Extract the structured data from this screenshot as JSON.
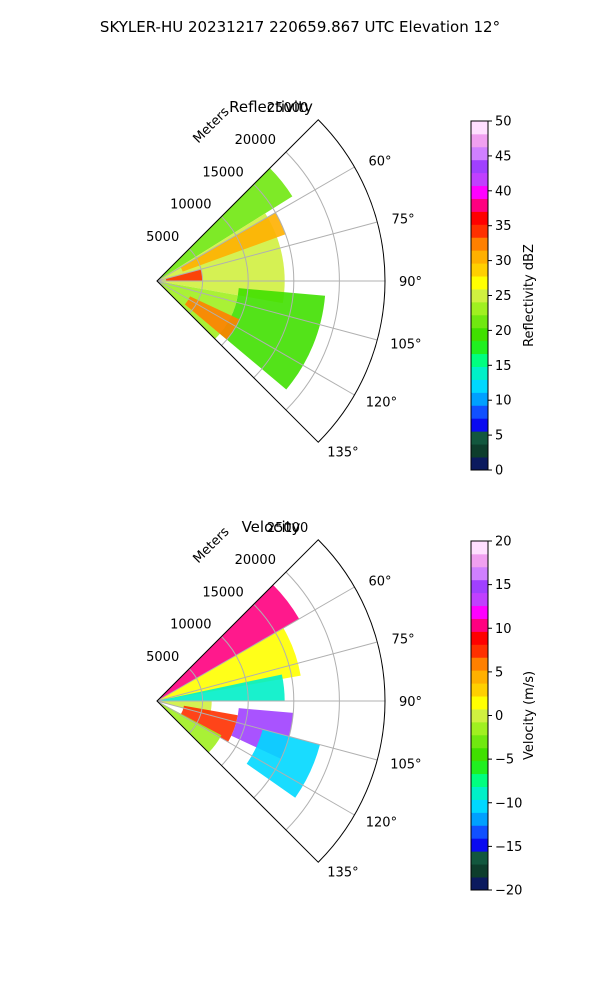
{
  "figure": {
    "title": "SKYLER-HU  20231217  220659.867 UTC Elevation 12°"
  },
  "chart_data": [
    {
      "type": "heatmap",
      "projection": "polar-sector",
      "title": "Reflectivity",
      "range_label": "Meters",
      "azimuth_range_deg": [
        45,
        135
      ],
      "azimuth_ticks": [
        60,
        75,
        90,
        105,
        120,
        135
      ],
      "azimuth_tick_labels": [
        "60°",
        "75°",
        "90°",
        "105°",
        "120°",
        "135°"
      ],
      "range_max_m": 25000,
      "range_ticks": [
        5000,
        10000,
        15000,
        20000,
        25000
      ],
      "range_tick_labels": [
        "5000",
        "10000",
        "15000",
        "20000",
        "25000"
      ],
      "colorbar": {
        "label": "Reflectivity dBZ",
        "min": 0,
        "max": 50,
        "ticks": [
          0,
          5,
          10,
          15,
          20,
          25,
          30,
          35,
          40,
          45,
          50
        ],
        "tick_labels": [
          "0",
          "5",
          "10",
          "15",
          "20",
          "25",
          "30",
          "35",
          "40",
          "45",
          "50"
        ],
        "colors": [
          "#0b1a5e",
          "#0d3d2c",
          "#12573e",
          "#0a0af0",
          "#1050ff",
          "#00a0ff",
          "#00d8ff",
          "#00f0c8",
          "#00ff80",
          "#20f020",
          "#40e000",
          "#70e810",
          "#a0f020",
          "#d0f040",
          "#ffff00",
          "#ffd000",
          "#ffb000",
          "#ff8000",
          "#ff3000",
          "#ff0000",
          "#ff0080",
          "#ff00ff",
          "#c040ff",
          "#a040ff",
          "#d080ff",
          "#f0a0f0",
          "#ffe0ff"
        ]
      },
      "regions": [
        {
          "az": [
            45,
            58
          ],
          "r": [
            0,
            17500
          ],
          "value": 22
        },
        {
          "az": [
            58,
            100
          ],
          "r": [
            0,
            14000
          ],
          "value": 25
        },
        {
          "az": [
            60,
            70
          ],
          "r": [
            3000,
            15000
          ],
          "value": 31
        },
        {
          "az": [
            100,
            135
          ],
          "r": [
            0,
            9000
          ],
          "value": 24
        },
        {
          "az": [
            95,
            130
          ],
          "r": [
            9000,
            18500
          ],
          "value": 19
        },
        {
          "az": [
            115,
            130
          ],
          "r": [
            4000,
            10000
          ],
          "value": 33
        },
        {
          "az": [
            75,
            90
          ],
          "r": [
            1000,
            5000
          ],
          "value": 34
        }
      ]
    },
    {
      "type": "heatmap",
      "projection": "polar-sector",
      "title": "Velocity",
      "range_label": "Meters",
      "azimuth_range_deg": [
        45,
        135
      ],
      "azimuth_ticks": [
        60,
        75,
        90,
        105,
        120,
        135
      ],
      "azimuth_tick_labels": [
        "60°",
        "75°",
        "90°",
        "105°",
        "120°",
        "135°"
      ],
      "range_max_m": 25000,
      "range_ticks": [
        5000,
        10000,
        15000,
        20000,
        25000
      ],
      "range_tick_labels": [
        "5000",
        "10000",
        "15000",
        "20000",
        "25000"
      ],
      "colorbar": {
        "label": "Velocity (m/s)",
        "min": -20,
        "max": 20,
        "ticks": [
          -20,
          -15,
          -10,
          -5,
          0,
          5,
          10,
          15,
          20
        ],
        "tick_labels": [
          "−20",
          "−15",
          "−10",
          "−5",
          "0",
          "5",
          "10",
          "15",
          "20"
        ],
        "colors": [
          "#0b1a5e",
          "#0d3d2c",
          "#12573e",
          "#0a0af0",
          "#1050ff",
          "#00a0ff",
          "#00d8ff",
          "#00f0c8",
          "#00ff80",
          "#20f020",
          "#40e000",
          "#70e810",
          "#a0f020",
          "#d0f040",
          "#ffff00",
          "#ffd000",
          "#ffb000",
          "#ff8000",
          "#ff3000",
          "#ff0000",
          "#ff0080",
          "#ff00ff",
          "#c040ff",
          "#a040ff",
          "#d080ff",
          "#f0a0f0",
          "#ffe0ff"
        ]
      },
      "regions": [
        {
          "az": [
            45,
            60
          ],
          "r": [
            0,
            18000
          ],
          "value": 11
        },
        {
          "az": [
            60,
            80
          ],
          "r": [
            0,
            16000
          ],
          "value": 1
        },
        {
          "az": [
            78,
            90
          ],
          "r": [
            0,
            14000
          ],
          "value": -9
        },
        {
          "az": [
            90,
            105
          ],
          "r": [
            0,
            6000
          ],
          "value": 0
        },
        {
          "az": [
            100,
            120
          ],
          "r": [
            3000,
            9000
          ],
          "value": 8
        },
        {
          "az": [
            95,
            115
          ],
          "r": [
            9000,
            15000
          ],
          "value": 15
        },
        {
          "az": [
            105,
            125
          ],
          "r": [
            12000,
            18500
          ],
          "value": -11
        },
        {
          "az": [
            118,
            135
          ],
          "r": [
            0,
            8000
          ],
          "value": -2
        }
      ]
    }
  ]
}
